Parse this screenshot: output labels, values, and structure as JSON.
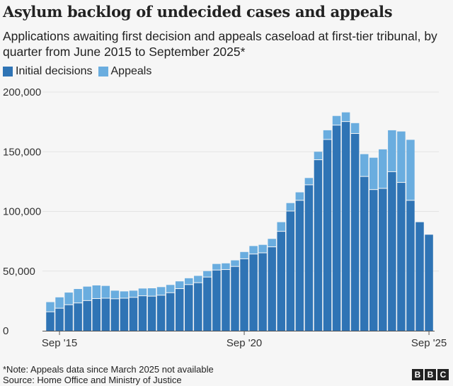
{
  "title": "Asylum backlog of undecided cases and appeals",
  "subtitle": "Applications awaiting first decision and appeals caseload at first-tier tribunal, by quarter from June 2015 to September 2025*",
  "note": "*Note: Appeals data since March 2025 not available",
  "source": "Source: Home Office and Ministry of Justice",
  "logo": "BBC",
  "colors": {
    "initial": "#2f74b5",
    "appeals": "#6aaddf",
    "background": "#f6f6f6"
  },
  "chart_data": {
    "type": "bar",
    "stacked": true,
    "ylim": [
      0,
      200000
    ],
    "yticks": [
      0,
      50000,
      100000,
      150000,
      200000
    ],
    "ytick_labels": [
      "0",
      "50,000",
      "100,000",
      "150,000",
      "200,000"
    ],
    "xtick_labels": [
      {
        "at": "Sep 2015",
        "label": "Sep '15"
      },
      {
        "at": "Sep 2020",
        "label": "Sep '20"
      },
      {
        "at": "Sep 2025",
        "label": "Sep '25"
      }
    ],
    "grid": true,
    "legend": "top-left",
    "categories": [
      "Jun 2015",
      "Sep 2015",
      "Dec 2015",
      "Mar 2016",
      "Jun 2016",
      "Sep 2016",
      "Dec 2016",
      "Mar 2017",
      "Jun 2017",
      "Sep 2017",
      "Dec 2017",
      "Mar 2018",
      "Jun 2018",
      "Sep 2018",
      "Dec 2018",
      "Mar 2019",
      "Jun 2019",
      "Sep 2019",
      "Dec 2019",
      "Mar 2020",
      "Jun 2020",
      "Sep 2020",
      "Dec 2020",
      "Mar 2021",
      "Jun 2021",
      "Sep 2021",
      "Dec 2021",
      "Mar 2022",
      "Jun 2022",
      "Sep 2022",
      "Dec 2022",
      "Mar 2023",
      "Jun 2023",
      "Sep 2023",
      "Dec 2023",
      "Mar 2024",
      "Jun 2024",
      "Sep 2024",
      "Dec 2024",
      "Mar 2025",
      "Jun 2025",
      "Sep 2025"
    ],
    "series": [
      {
        "name": "Initial decisions",
        "values": [
          15600,
          18600,
          21500,
          23000,
          25000,
          26700,
          27000,
          26500,
          27000,
          27700,
          29000,
          28700,
          29500,
          31600,
          35000,
          38400,
          40000,
          44700,
          50600,
          51000,
          53600,
          60000,
          64000,
          65000,
          70000,
          83000,
          100000,
          109000,
          122000,
          143000,
          160000,
          172000,
          175000,
          165000,
          129000,
          118000,
          119000,
          133000,
          124000,
          109000,
          91000,
          80500
        ]
      },
      {
        "name": "Appeals",
        "values": [
          8400,
          9400,
          10500,
          12000,
          12000,
          11300,
          10600,
          7100,
          6000,
          5900,
          6400,
          6900,
          7100,
          6800,
          6400,
          5600,
          6000,
          5300,
          5400,
          5500,
          5400,
          6000,
          7000,
          7000,
          7000,
          8000,
          7000,
          7000,
          6000,
          7000,
          8000,
          8000,
          8000,
          9000,
          19000,
          27000,
          33000,
          35000,
          43000,
          51000,
          0,
          0
        ]
      }
    ]
  }
}
